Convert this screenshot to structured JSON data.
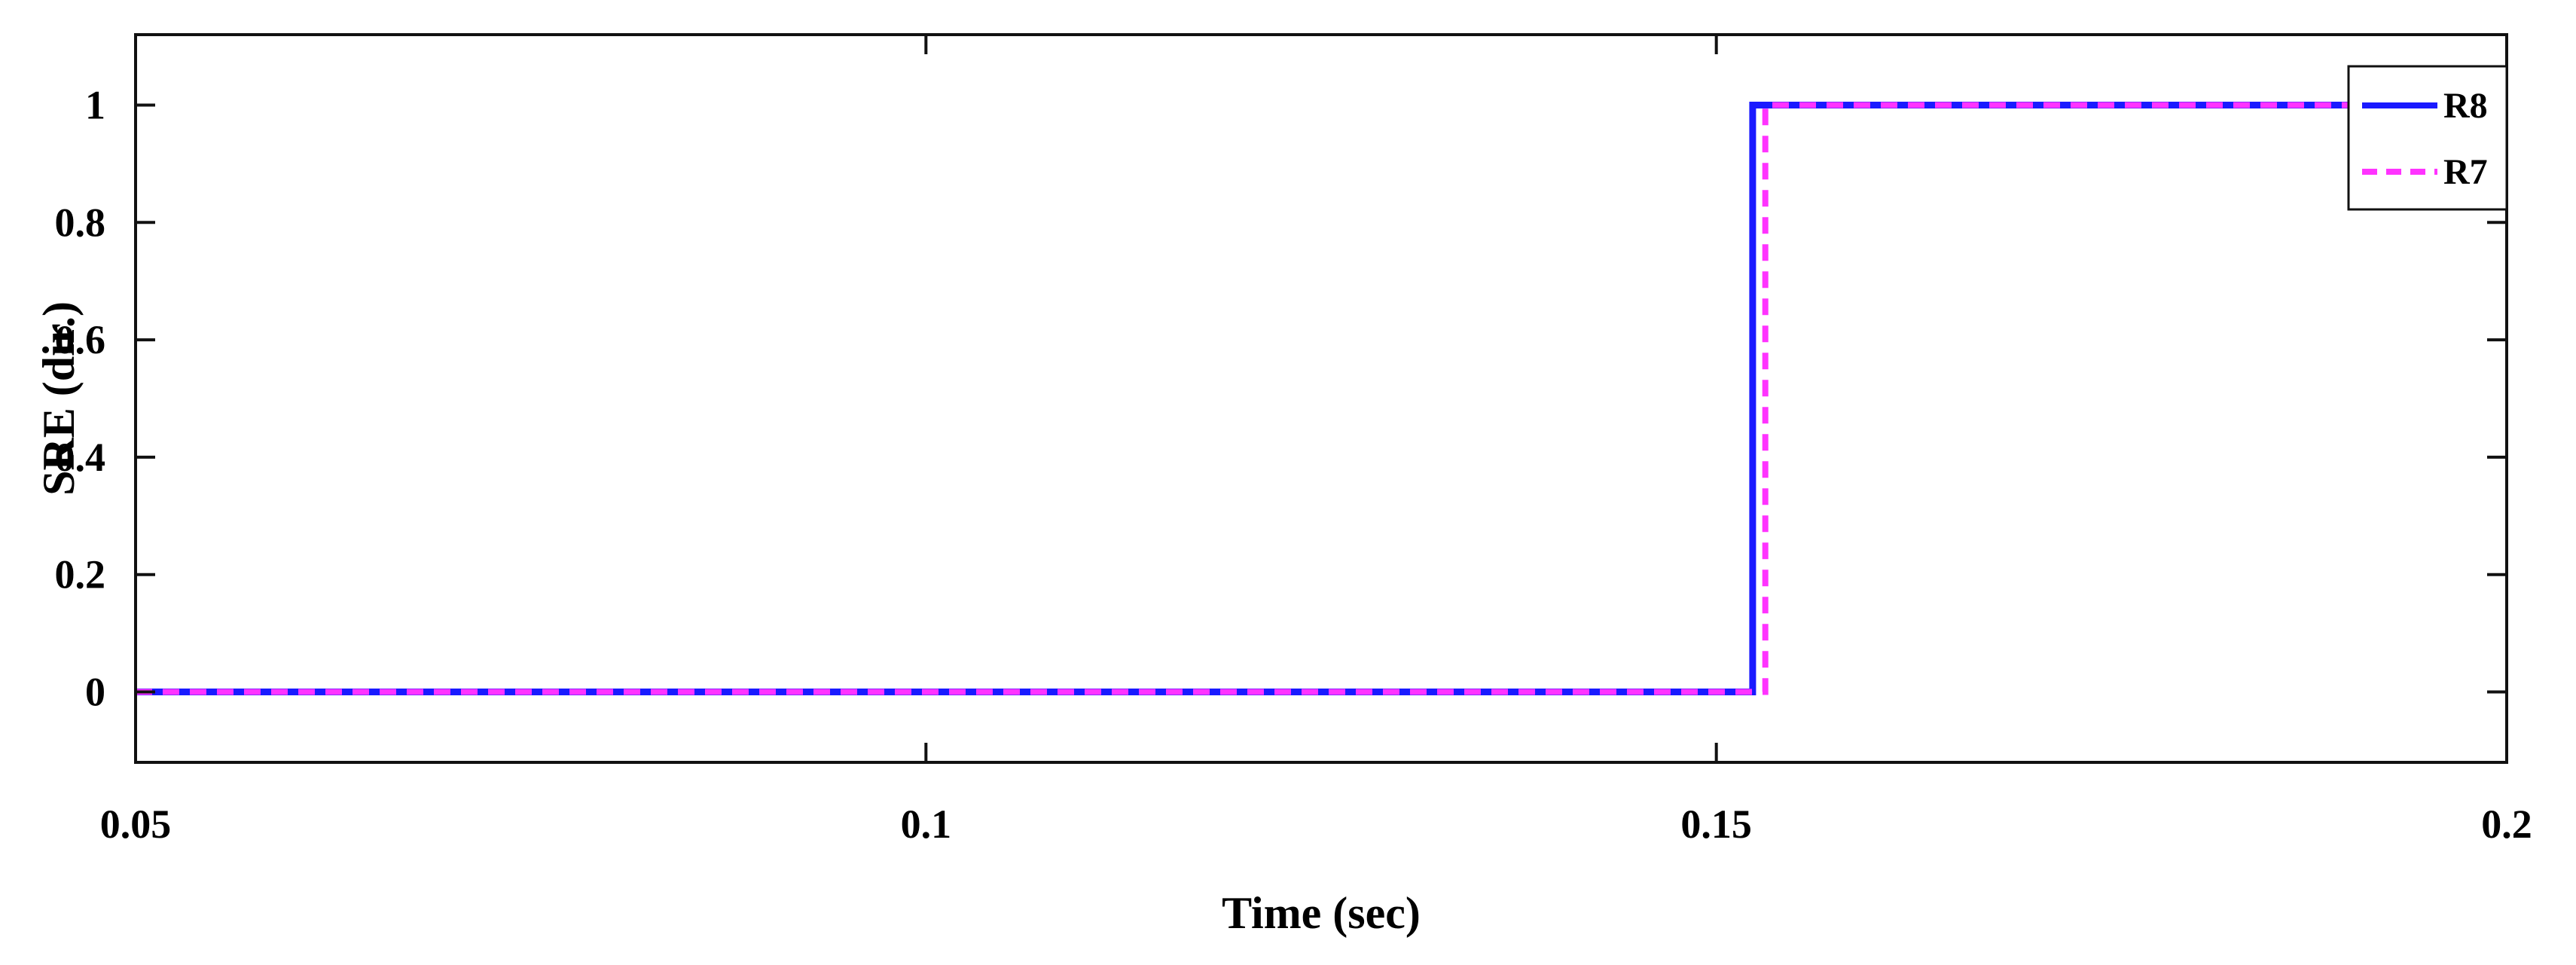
{
  "chart_data": {
    "type": "line",
    "title": "",
    "xlabel": "Time (sec)",
    "ylabel": "SRE (dir.)",
    "xlim": [
      0.05,
      0.2
    ],
    "ylim": [
      -0.12,
      1.12
    ],
    "xticks": [
      0.05,
      0.1,
      0.15,
      0.2
    ],
    "xtick_labels": [
      "0.05",
      "0.1",
      "0.15",
      "0.2"
    ],
    "yticks": [
      0,
      0.2,
      0.4,
      0.6,
      0.8,
      1
    ],
    "ytick_labels": [
      "0",
      "0.2",
      "0.4",
      "0.6",
      "0.8",
      "1"
    ],
    "grid": false,
    "legend_position": "top-right",
    "series": [
      {
        "name": "R8",
        "color": "#1a1aff",
        "line_style": "solid",
        "x": [
          0.05,
          0.1523,
          0.1523,
          0.2
        ],
        "y": [
          0,
          0,
          1,
          1
        ]
      },
      {
        "name": "R7",
        "color": "#ff33ff",
        "line_style": "dashed",
        "x": [
          0.05,
          0.1531,
          0.1531,
          0.2
        ],
        "y": [
          0,
          0,
          1,
          1
        ]
      }
    ]
  }
}
